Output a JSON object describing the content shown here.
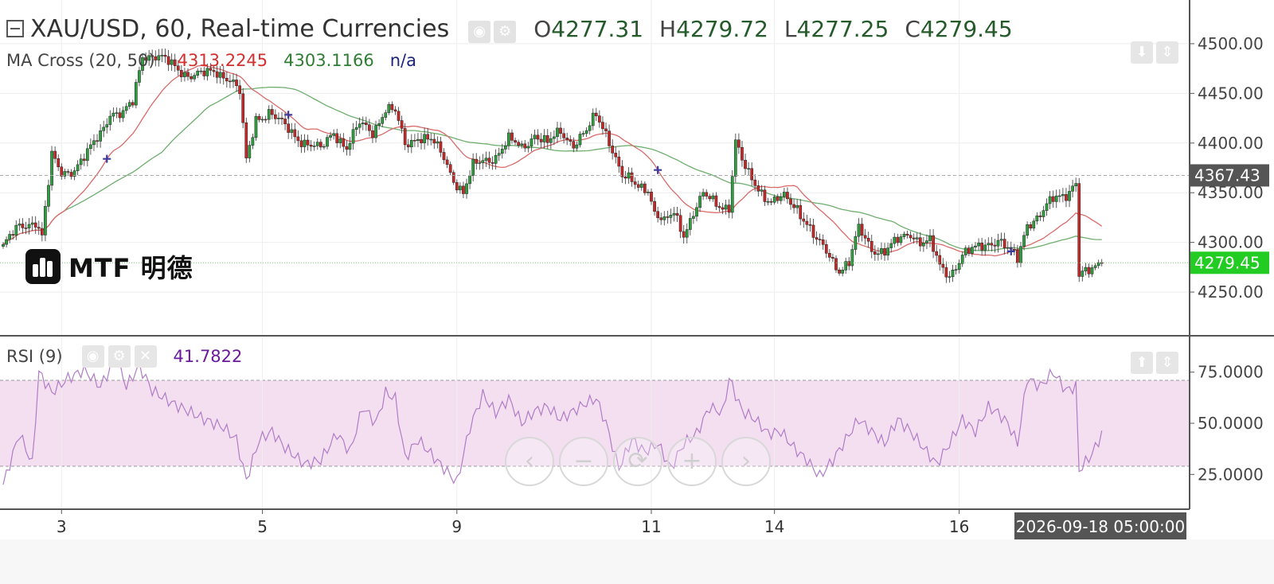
{
  "header": {
    "title": "XAU/USD, 60, Real-time Currencies",
    "ohlc": [
      {
        "key": "O",
        "value": "4277.31"
      },
      {
        "key": "H",
        "value": "4279.72"
      },
      {
        "key": "L",
        "value": "4277.25"
      },
      {
        "key": "C",
        "value": "4279.45"
      }
    ]
  },
  "ma_indicator": {
    "label": "MA Cross (20, 50)",
    "value_fast": "4313.2245",
    "value_slow": "4303.1166",
    "value_cross": "n/a",
    "color_fast": "#d32f2f",
    "color_slow": "#2e7d32"
  },
  "rsi_indicator": {
    "label": "RSI (9)",
    "value": "41.7822",
    "color": "#b07cc6"
  },
  "logo": {
    "text": "MTF 明德"
  },
  "nav_buttons": [
    "‹",
    "−",
    "⟳",
    "+",
    "›"
  ],
  "chart_data": {
    "type": "candlestick",
    "price_axis": {
      "ticks": [
        "4500.00",
        "4450.00",
        "4400.00",
        "4350.00",
        "4300.00",
        "4250.00"
      ],
      "tick_values": [
        4500,
        4450,
        4400,
        4350,
        4300,
        4250
      ],
      "range": [
        4206,
        4544
      ]
    },
    "rsi_axis": {
      "ticks": [
        "75.0000",
        "50.0000",
        "25.0000"
      ],
      "tick_values": [
        75,
        50,
        25
      ],
      "range": [
        8,
        92
      ],
      "band": [
        29,
        71
      ]
    },
    "x_ticks": [
      "3",
      "5",
      "9",
      "11",
      "14",
      "16"
    ],
    "x_tick_index": [
      18,
      80,
      140,
      200,
      238,
      295
    ],
    "bar_count": 340,
    "price_tags": [
      {
        "value": 4367.43,
        "label": "4367.43",
        "color": "#555555"
      },
      {
        "value": 4279.45,
        "label": "4279.45",
        "color": "#22cc22"
      }
    ],
    "crosshair_time": "2026-09-18 05:00:00",
    "colors": {
      "up": "#2e9e3e",
      "down": "#c62828",
      "rsi_band": "#f3dff0"
    },
    "anchors": [
      [
        0,
        4296
      ],
      [
        5,
        4315
      ],
      [
        10,
        4323
      ],
      [
        12,
        4306
      ],
      [
        15,
        4385
      ],
      [
        18,
        4370
      ],
      [
        22,
        4375
      ],
      [
        26,
        4388
      ],
      [
        30,
        4410
      ],
      [
        33,
        4432
      ],
      [
        37,
        4428
      ],
      [
        40,
        4440
      ],
      [
        43,
        4490
      ],
      [
        47,
        4488
      ],
      [
        52,
        4478
      ],
      [
        57,
        4470
      ],
      [
        62,
        4468
      ],
      [
        66,
        4472
      ],
      [
        70,
        4466
      ],
      [
        73,
        4450
      ],
      [
        75,
        4380
      ],
      [
        78,
        4425
      ],
      [
        82,
        4432
      ],
      [
        86,
        4418
      ],
      [
        90,
        4408
      ],
      [
        94,
        4400
      ],
      [
        98,
        4392
      ],
      [
        102,
        4412
      ],
      [
        106,
        4396
      ],
      [
        110,
        4418
      ],
      [
        114,
        4412
      ],
      [
        118,
        4435
      ],
      [
        121,
        4430
      ],
      [
        124,
        4398
      ],
      [
        128,
        4408
      ],
      [
        132,
        4402
      ],
      [
        136,
        4385
      ],
      [
        139,
        4365
      ],
      [
        142,
        4350
      ],
      [
        145,
        4375
      ],
      [
        148,
        4382
      ],
      [
        152,
        4388
      ],
      [
        156,
        4402
      ],
      [
        160,
        4395
      ],
      [
        164,
        4410
      ],
      [
        168,
        4398
      ],
      [
        172,
        4412
      ],
      [
        176,
        4400
      ],
      [
        180,
        4410
      ],
      [
        183,
        4428
      ],
      [
        186,
        4412
      ],
      [
        188,
        4395
      ],
      [
        191,
        4365
      ],
      [
        195,
        4358
      ],
      [
        199,
        4356
      ],
      [
        201,
        4330
      ],
      [
        204,
        4318
      ],
      [
        207,
        4330
      ],
      [
        210,
        4310
      ],
      [
        213,
        4330
      ],
      [
        216,
        4346
      ],
      [
        220,
        4340
      ],
      [
        224,
        4336
      ],
      [
        226,
        4400
      ],
      [
        229,
        4372
      ],
      [
        233,
        4356
      ],
      [
        237,
        4340
      ],
      [
        241,
        4344
      ],
      [
        245,
        4336
      ],
      [
        248,
        4320
      ],
      [
        251,
        4300
      ],
      [
        254,
        4290
      ],
      [
        258,
        4274
      ],
      [
        261,
        4280
      ],
      [
        264,
        4312
      ],
      [
        268,
        4294
      ],
      [
        272,
        4292
      ],
      [
        276,
        4300
      ],
      [
        280,
        4310
      ],
      [
        283,
        4302
      ],
      [
        286,
        4300
      ],
      [
        289,
        4274
      ],
      [
        292,
        4268
      ],
      [
        296,
        4288
      ],
      [
        300,
        4292
      ],
      [
        304,
        4300
      ],
      [
        307,
        4304
      ],
      [
        310,
        4292
      ],
      [
        313,
        4282
      ],
      [
        316,
        4320
      ],
      [
        320,
        4328
      ],
      [
        324,
        4342
      ],
      [
        328,
        4350
      ],
      [
        331,
        4362
      ],
      [
        332,
        4268
      ],
      [
        335,
        4268
      ],
      [
        339,
        4280
      ],
      [
        341,
        4298
      ],
      [
        343,
        4279
      ]
    ],
    "rsi_anchors": [
      [
        0,
        20
      ],
      [
        5,
        45
      ],
      [
        9,
        30
      ],
      [
        11,
        75
      ],
      [
        15,
        65
      ],
      [
        20,
        72
      ],
      [
        25,
        76
      ],
      [
        30,
        68
      ],
      [
        35,
        82
      ],
      [
        38,
        68
      ],
      [
        42,
        78
      ],
      [
        46,
        66
      ],
      [
        52,
        60
      ],
      [
        57,
        56
      ],
      [
        62,
        52
      ],
      [
        68,
        48
      ],
      [
        72,
        42
      ],
      [
        75,
        22
      ],
      [
        79,
        42
      ],
      [
        83,
        46
      ],
      [
        87,
        38
      ],
      [
        93,
        30
      ],
      [
        98,
        32
      ],
      [
        103,
        45
      ],
      [
        107,
        36
      ],
      [
        111,
        58
      ],
      [
        115,
        50
      ],
      [
        118,
        65
      ],
      [
        121,
        62
      ],
      [
        124,
        33
      ],
      [
        128,
        42
      ],
      [
        132,
        35
      ],
      [
        136,
        28
      ],
      [
        140,
        21
      ],
      [
        144,
        48
      ],
      [
        148,
        64
      ],
      [
        152,
        55
      ],
      [
        156,
        62
      ],
      [
        160,
        50
      ],
      [
        164,
        56
      ],
      [
        168,
        58
      ],
      [
        172,
        52
      ],
      [
        176,
        56
      ],
      [
        180,
        60
      ],
      [
        183,
        62
      ],
      [
        186,
        50
      ],
      [
        190,
        28
      ],
      [
        194,
        42
      ],
      [
        198,
        36
      ],
      [
        202,
        40
      ],
      [
        206,
        28
      ],
      [
        210,
        40
      ],
      [
        214,
        45
      ],
      [
        218,
        58
      ],
      [
        222,
        55
      ],
      [
        224,
        72
      ],
      [
        228,
        56
      ],
      [
        232,
        52
      ],
      [
        236,
        45
      ],
      [
        240,
        46
      ],
      [
        244,
        38
      ],
      [
        248,
        32
      ],
      [
        252,
        24
      ],
      [
        256,
        32
      ],
      [
        260,
        42
      ],
      [
        264,
        52
      ],
      [
        268,
        46
      ],
      [
        272,
        40
      ],
      [
        276,
        52
      ],
      [
        280,
        46
      ],
      [
        284,
        38
      ],
      [
        288,
        30
      ],
      [
        292,
        40
      ],
      [
        296,
        52
      ],
      [
        300,
        46
      ],
      [
        304,
        58
      ],
      [
        307,
        55
      ],
      [
        310,
        50
      ],
      [
        313,
        40
      ],
      [
        316,
        72
      ],
      [
        320,
        68
      ],
      [
        324,
        75
      ],
      [
        328,
        66
      ],
      [
        331,
        68
      ],
      [
        332,
        27
      ],
      [
        336,
        35
      ],
      [
        340,
        48
      ],
      [
        343,
        42
      ]
    ]
  }
}
